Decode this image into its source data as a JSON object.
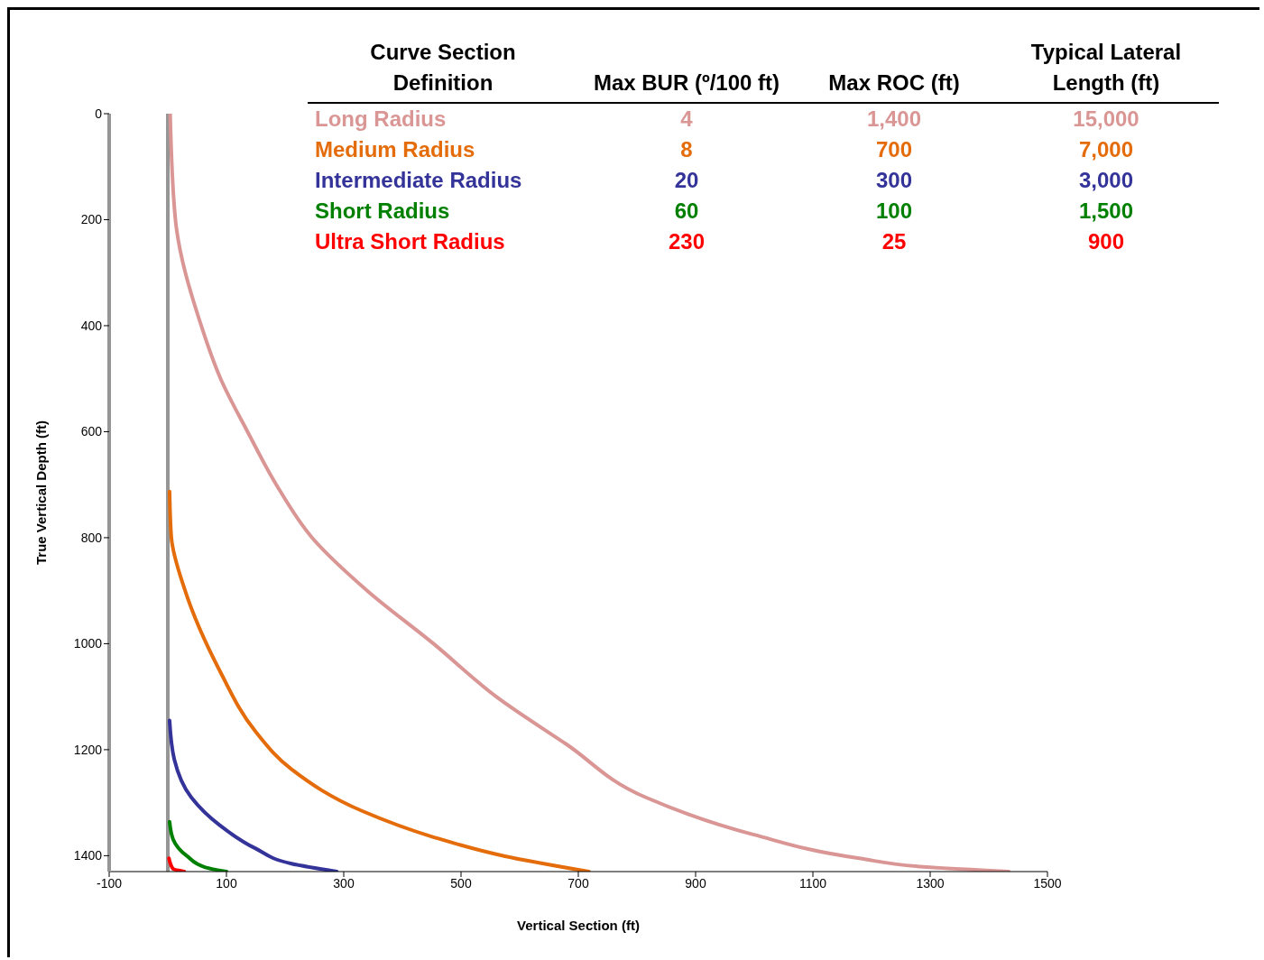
{
  "chart_data": {
    "type": "line",
    "xlabel": "Vertical Section (ft)",
    "ylabel": "True Vertical Depth (ft)",
    "xlim": [
      -100,
      1500
    ],
    "xticks": [
      -100,
      100,
      300,
      500,
      700,
      900,
      1100,
      1300,
      1500
    ],
    "ylim": [
      1430,
      0
    ],
    "yticks": [
      0,
      200,
      400,
      600,
      800,
      1000,
      1200,
      1400
    ],
    "series": [
      {
        "name": "Long Radius",
        "color": "#d99694",
        "x": [
          4,
          13,
          57,
          90,
          136,
          185,
          246,
          340,
          453,
          560,
          680,
          815,
          998,
          1179,
          1300,
          1434
        ],
        "values": [
          0,
          200,
          400,
          500,
          600,
          700,
          800,
          900,
          1000,
          1100,
          1190,
          1290,
          1360,
          1405,
          1422,
          1430
        ]
      },
      {
        "name": "Medium Radius",
        "color": "#e46c0a",
        "x": [
          3,
          6,
          28,
          89,
          149,
          211,
          332,
          453,
          575,
          718
        ],
        "values": [
          713,
          799,
          895,
          1052,
          1165,
          1237,
          1316,
          1365,
          1401,
          1430
        ]
      },
      {
        "name": "Intermediate Radius",
        "color": "#333399",
        "x": [
          3,
          11,
          40,
          89,
          149,
          211,
          288
        ],
        "values": [
          1145,
          1218,
          1290,
          1343,
          1386,
          1415,
          1430
        ]
      },
      {
        "name": "Short Radius",
        "color": "#008000",
        "x": [
          3,
          9,
          33,
          64,
          100
        ],
        "values": [
          1336,
          1369,
          1401,
          1422,
          1430
        ]
      },
      {
        "name": "Ultra Short Radius",
        "color": "#ff0000",
        "x": [
          2,
          9,
          28
        ],
        "values": [
          1405,
          1425,
          1430
        ]
      }
    ],
    "ref_lines": [
      {
        "axis": "x",
        "value": 0,
        "color": "#969696"
      }
    ],
    "annotations": [
      "Curve Section Definition",
      "Max BUR (º/100 ft)",
      "Max ROC (ft)",
      "Typical Lateral Length (ft)",
      "4",
      "1,400",
      "15,000",
      "8",
      "700",
      "7,000",
      "20",
      "300",
      "3,000",
      "60",
      "100",
      "1,500",
      "230",
      "25",
      "900"
    ]
  }
}
